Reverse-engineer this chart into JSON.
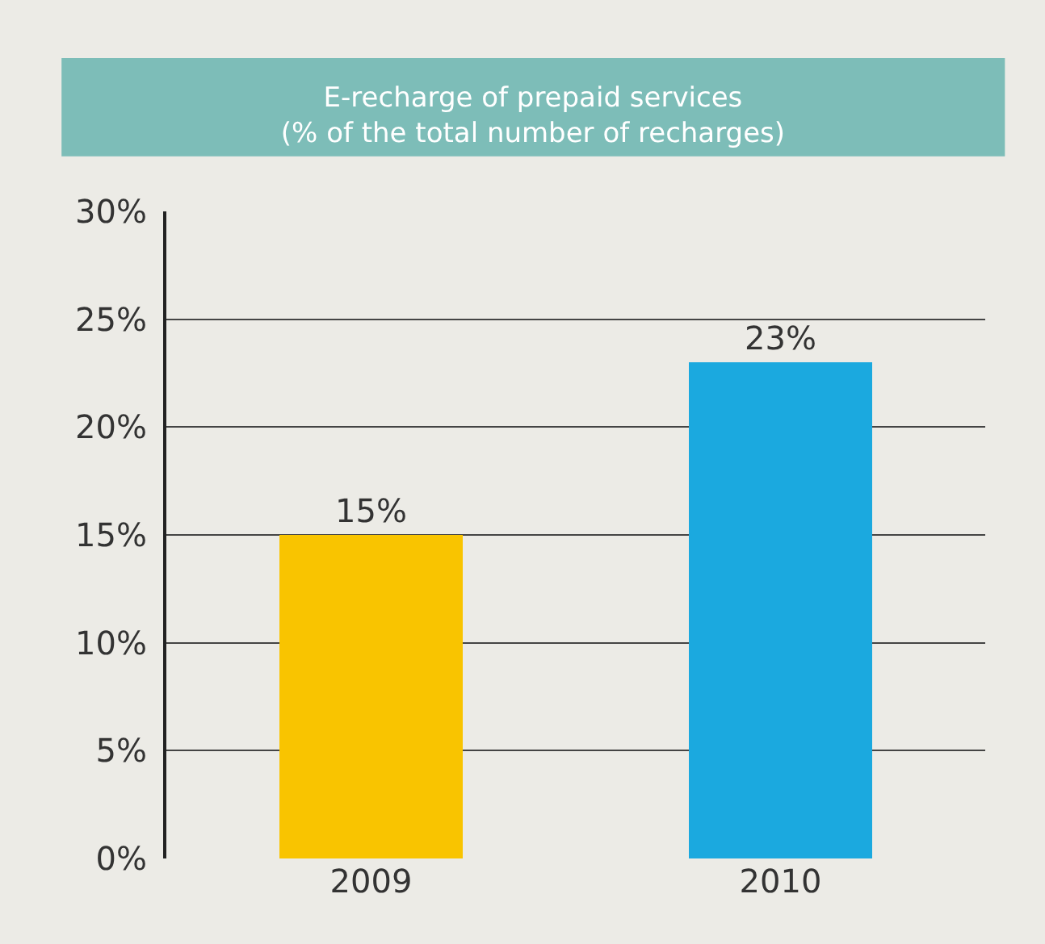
{
  "chart_data": {
    "type": "bar",
    "title": "E-recharge of prepaid services\n(% of the total number of recharges)",
    "categories": [
      "2009",
      "2010"
    ],
    "values": [
      15,
      23
    ],
    "colors": [
      "#f9c400",
      "#1ba9df"
    ],
    "value_labels": [
      "15%",
      "23%"
    ],
    "ylim": [
      0,
      30
    ],
    "yticks": [
      {
        "value": 0,
        "label": "0%"
      },
      {
        "value": 5,
        "label": "5%"
      },
      {
        "value": 10,
        "label": "10%"
      },
      {
        "value": 15,
        "label": "15%"
      },
      {
        "value": 20,
        "label": "20%"
      },
      {
        "value": 25,
        "label": "25%"
      },
      {
        "value": 30,
        "label": "30%"
      }
    ],
    "grid": "y"
  }
}
